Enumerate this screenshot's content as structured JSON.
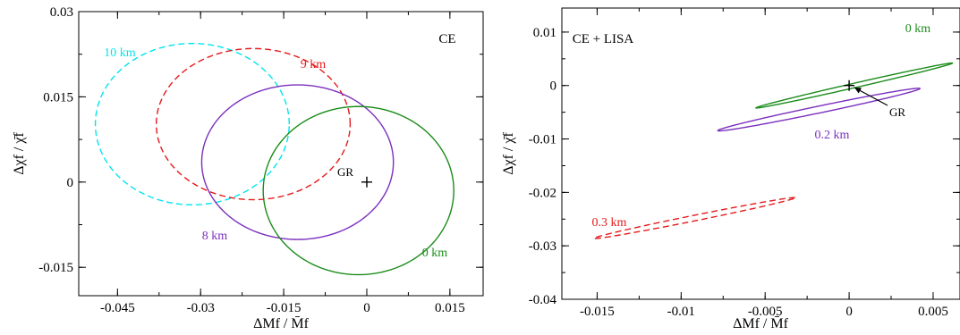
{
  "chart_data": [
    {
      "type": "scatter",
      "title": "",
      "panel_label": "CE",
      "xlabel": "ΔMf / M̄f",
      "ylabel": "Δχf / χ̄f",
      "xlim": [
        -0.052,
        0.021
      ],
      "ylim": [
        -0.02,
        0.03
      ],
      "xticks": [
        -0.045,
        -0.03,
        -0.015,
        0,
        0.015
      ],
      "xtick_labels": [
        "-0.045",
        "-0.03",
        "-0.015",
        "0",
        "0.015"
      ],
      "yticks": [
        -0.015,
        0,
        0.015,
        0.03
      ],
      "ytick_labels": [
        "-0.015",
        "0",
        "0.015",
        "0.03"
      ],
      "marker": {
        "x": 0,
        "y": 0,
        "symbol": "+",
        "label": "GR"
      },
      "series": [
        {
          "name": "10 km",
          "color": "#00e5ee",
          "dash": true,
          "center": [
            -0.0315,
            0.0102
          ],
          "semi_axes": [
            0.0175,
            0.0142
          ],
          "angle_deg": 0
        },
        {
          "name": "9 km",
          "color": "#e41a1c",
          "dash": true,
          "center": [
            -0.0205,
            0.0102
          ],
          "semi_axes": [
            0.0175,
            0.0133
          ],
          "angle_deg": 0
        },
        {
          "name": "8 km",
          "color": "#7b2fbe",
          "dash": false,
          "center": [
            -0.0125,
            0.0035
          ],
          "semi_axes": [
            0.0173,
            0.0136
          ],
          "angle_deg": 0
        },
        {
          "name": "0 km",
          "color": "#1a8c1a",
          "dash": false,
          "center": [
            -0.0015,
            -0.0015
          ],
          "semi_axes": [
            0.0172,
            0.0148
          ],
          "angle_deg": 0
        }
      ]
    },
    {
      "type": "scatter",
      "title": "",
      "panel_label": "CE + LISA",
      "xlabel": "ΔMf / M̄f",
      "ylabel": "Δχf / χ̄f",
      "xlim": [
        -0.0171,
        0.0066
      ],
      "ylim": [
        -0.04,
        0.0145
      ],
      "xticks": [
        -0.015,
        -0.01,
        -0.005,
        0,
        0.005
      ],
      "xtick_labels": [
        "-0.015",
        "-0.01",
        "-0.005",
        "0",
        "0.005"
      ],
      "yticks": [
        -0.04,
        -0.03,
        -0.02,
        -0.01,
        0,
        0.01
      ],
      "ytick_labels": [
        "-0.04",
        "-0.03",
        "-0.02",
        "-0.01",
        "0",
        "0.01"
      ],
      "marker": {
        "x": 0,
        "y": 0,
        "symbol": "+",
        "label": "GR"
      },
      "series": [
        {
          "name": "0 km",
          "color": "#1a8c1a",
          "dash": false,
          "center": [
            0.0003,
            0.0
          ],
          "semi_axes": [
            0.0072,
            0.00035
          ],
          "angle_deg": 35.7
        },
        {
          "name": "0.2 km",
          "color": "#7b2fbe",
          "dash": false,
          "center": [
            -0.0018,
            -0.0045
          ],
          "semi_axes": [
            0.0072,
            0.00055
          ],
          "angle_deg": 33.4
        },
        {
          "name": "0.3 km",
          "color": "#e41a1c",
          "dash": true,
          "center": [
            -0.0092,
            -0.0248
          ],
          "semi_axes": [
            0.0071,
            0.00045
          ],
          "angle_deg": 32.5
        }
      ]
    }
  ]
}
